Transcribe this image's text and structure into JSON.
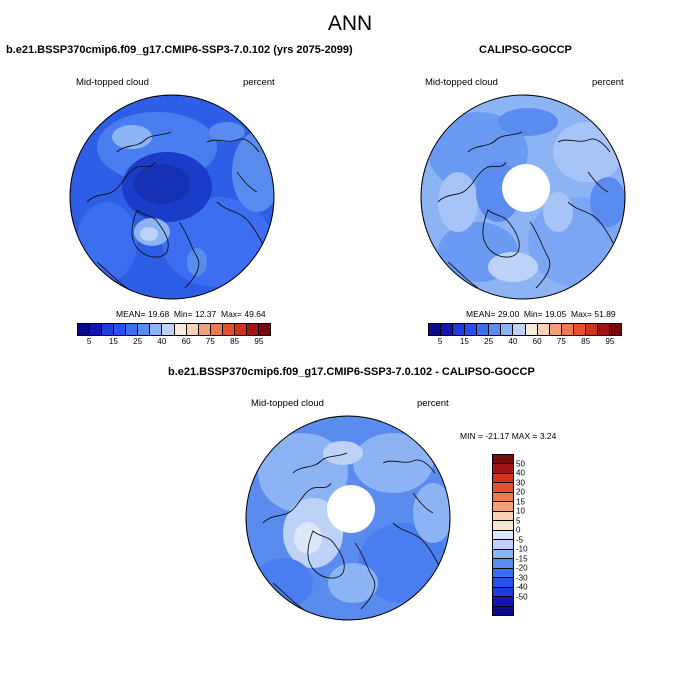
{
  "main_title": "ANN",
  "panel_left": {
    "title": "b.e21.BSSP370cmip6.f09_g17.CMIP6-SSP3-7.0.102 (yrs 2075-2099)",
    "field": "Mid-topped cloud",
    "units": "percent",
    "mean_label": "MEAN=",
    "mean": "19.68",
    "min_label": "Min=",
    "min": "12.37",
    "max_label": "Max=",
    "max": "49.64"
  },
  "panel_right": {
    "title": "CALIPSO-GOCCP",
    "field": "Mid-topped cloud",
    "units": "percent",
    "mean_label": "MEAN=",
    "mean": "29.00",
    "min_label": "Min=",
    "min": "19.05",
    "max_label": "Max=",
    "max": "51.89"
  },
  "panel_diff": {
    "title": "b.e21.BSSP370cmip6.f09_g17.CMIP6-SSP3-7.0.102 - CALIPSO-GOCCP",
    "field": "Mid-topped cloud",
    "units": "percent",
    "minmax": "MIN = -21.17 MAX =   3.24"
  },
  "colorbar_abs": {
    "colors": [
      "#0a0a8c",
      "#1414b4",
      "#1e3cdc",
      "#2850f0",
      "#3c6ef0",
      "#5a8cf0",
      "#8cb4f5",
      "#bed2f8",
      "#f5ecdc",
      "#fad2b4",
      "#f5a078",
      "#f07850",
      "#e6502d",
      "#d2321e",
      "#a01414",
      "#780a0a"
    ],
    "tick_labels": [
      "5",
      "15",
      "25",
      "40",
      "60",
      "75",
      "85",
      "95"
    ]
  },
  "colorbar_diff": {
    "colors": [
      "#0a0a8c",
      "#1414b4",
      "#1e3cdc",
      "#2850f0",
      "#3c6ef0",
      "#5a8cf0",
      "#8cb4f5",
      "#bed2f8",
      "#dce8fa",
      "#f5e6d2",
      "#fad2b4",
      "#f5a078",
      "#f07850",
      "#e6502d",
      "#d2321e",
      "#a01414",
      "#780a0a"
    ],
    "tick_labels": [
      "50",
      "40",
      "30",
      "20",
      "15",
      "10",
      "5",
      "0",
      "-5",
      "-10",
      "-15",
      "-20",
      "-30",
      "-40",
      "-50"
    ]
  }
}
